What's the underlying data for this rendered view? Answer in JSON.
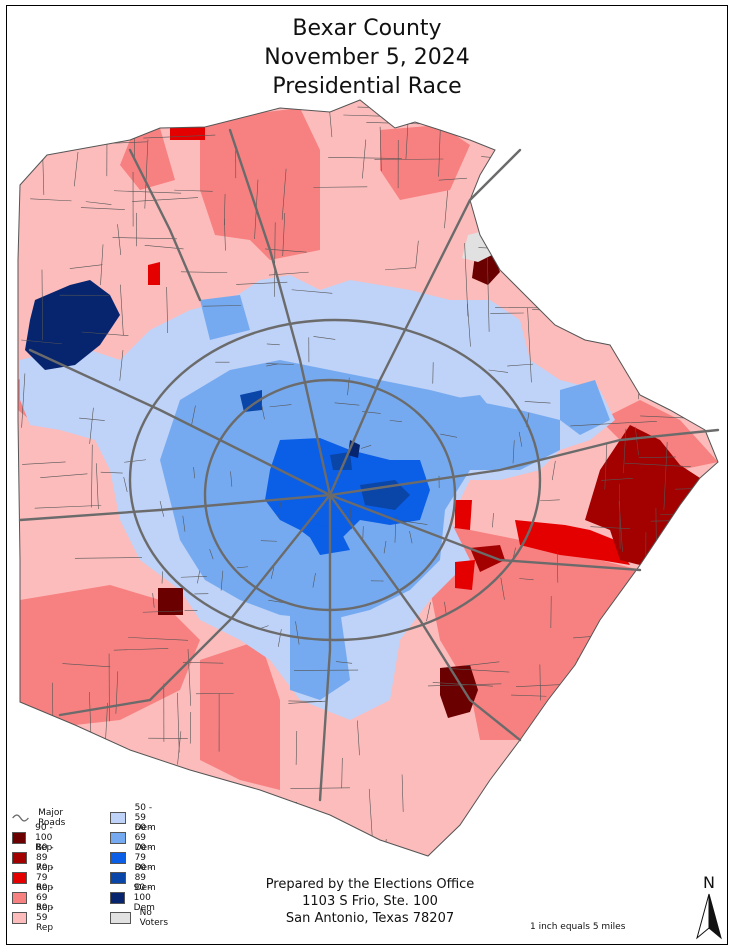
{
  "title": {
    "line1": "Bexar County",
    "line2": "November 5, 2024",
    "line3": "Presidential Race"
  },
  "colors": {
    "rep_90_100": "#6b0000",
    "rep_80_89": "#a30000",
    "rep_70_79": "#e50000",
    "rep_60_69": "#f78080",
    "rep_50_59": "#fcbcbc",
    "dem_50_59": "#bfd2f7",
    "dem_60_69": "#76aaf0",
    "dem_70_79": "#0b5ee6",
    "dem_80_89": "#0a45a8",
    "dem_90_100": "#06256e",
    "no_voters": "#e1e1e1",
    "roads": "#6b6b6b",
    "boundary": "#555555"
  },
  "legend": {
    "roads": "Major Roads",
    "rep": [
      "90 - 100 Rep",
      "80 - 89 Rep",
      "70 - 79 Rep",
      "60 - 69 Rep",
      "50 - 59 Rep"
    ],
    "dem": [
      "50 - 59 Dem",
      "60 - 69 Dem",
      "70 - 79 Dem",
      "80 - 89 Dem",
      "90 - 100 Dem"
    ],
    "no_voters": "No Voters"
  },
  "office": {
    "line1": "Prepared by the Elections Office",
    "line2": "1103 S Frio, Ste. 100",
    "line3": "San Antonio, Texas 78207"
  },
  "scale_text": "1 inch equals 5 miles",
  "north_label": "N"
}
